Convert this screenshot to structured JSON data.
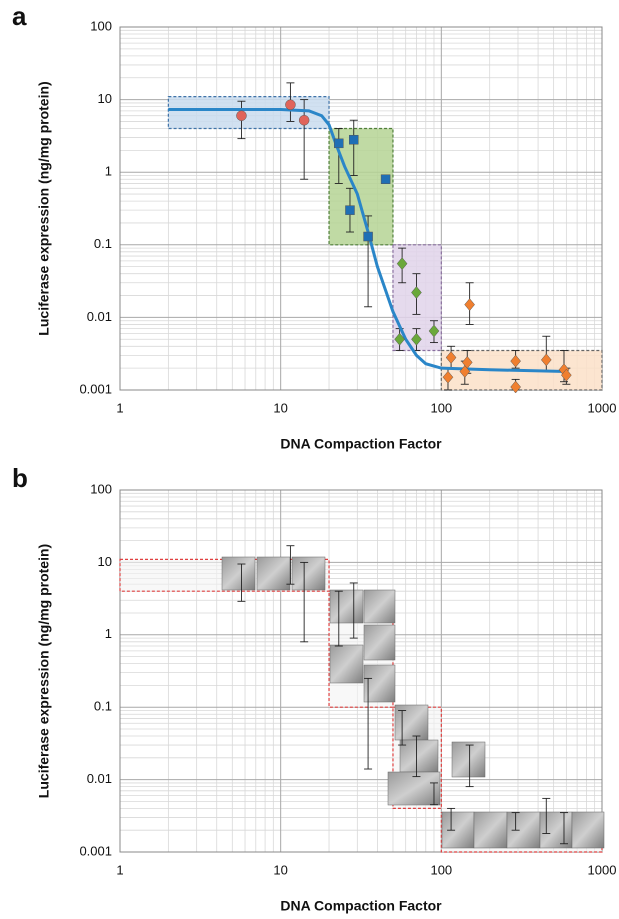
{
  "chart_data": [
    {
      "type": "scatter",
      "panel_label": "a",
      "xlabel": "DNA Compaction Factor",
      "ylabel": "Luciferase expression (ng/mg protein)",
      "xscale": "log",
      "yscale": "log",
      "xlim": [
        1,
        1000
      ],
      "ylim": [
        0.001,
        100
      ],
      "xticks": [
        1,
        10,
        100,
        1000
      ],
      "yticks": [
        0.001,
        0.01,
        0.1,
        1,
        10,
        100
      ],
      "grid": true,
      "regions": [
        {
          "x": [
            2,
            20
          ],
          "y": [
            4,
            11
          ],
          "color": "#c9dcee",
          "edge": "#3f73a8"
        },
        {
          "x": [
            20,
            50
          ],
          "y": [
            0.1,
            4
          ],
          "color": "#b5d394",
          "edge": "#4f7f3a"
        },
        {
          "x": [
            50,
            100
          ],
          "y": [
            0.0035,
            0.1
          ],
          "color": "#e0d3ea",
          "edge": "#8a70a0"
        },
        {
          "x": [
            100,
            1000
          ],
          "y": [
            0.001,
            0.0035
          ],
          "color": "#fce0c8",
          "edge": "#666666"
        }
      ],
      "curve": {
        "color": "#2a86c8",
        "x": [
          2,
          10,
          15,
          18,
          20,
          22,
          25,
          30,
          35,
          40,
          50,
          60,
          70,
          80,
          100,
          200,
          600
        ],
        "values": [
          7.3,
          7.3,
          7,
          6,
          4.5,
          2.5,
          1.2,
          0.5,
          0.15,
          0.05,
          0.012,
          0.005,
          0.003,
          0.0023,
          0.002,
          0.0019,
          0.0018
        ]
      },
      "series": [
        {
          "color": "#e0645a",
          "marker": "circle",
          "x": [
            5.7,
            11.5,
            14
          ],
          "values": [
            6,
            8.5,
            5.2
          ],
          "low": [
            2.9,
            5,
            0.8
          ],
          "high": [
            9.5,
            17,
            10
          ]
        },
        {
          "color": "#1f6fb5",
          "marker": "square",
          "x": [
            23,
            27,
            28.5,
            35,
            45
          ],
          "values": [
            2.5,
            0.3,
            2.8,
            0.13,
            0.8
          ],
          "low": [
            0.7,
            0.15,
            0.9,
            0.014,
            0.7
          ],
          "high": [
            4,
            0.6,
            5.2,
            0.25,
            0.9
          ]
        },
        {
          "color": "#6aa83a",
          "marker": "diamond",
          "x": [
            57,
            55,
            70,
            70,
            90
          ],
          "values": [
            0.055,
            0.005,
            0.022,
            0.005,
            0.0065
          ],
          "low": [
            0.03,
            0.0035,
            0.011,
            0.0035,
            0.0045
          ],
          "high": [
            0.09,
            0.007,
            0.04,
            0.007,
            0.009
          ]
        },
        {
          "color": "#f07f2f",
          "marker": "diamond",
          "x": [
            110,
            115,
            140,
            145,
            150,
            290,
            290,
            450,
            580,
            600
          ],
          "values": [
            0.0015,
            0.0028,
            0.0018,
            0.0024,
            0.015,
            0.0025,
            0.0011,
            0.0026,
            0.0019,
            0.0016
          ],
          "low": [
            0.001,
            0.002,
            0.0012,
            0.0017,
            0.008,
            0.002,
            0.001,
            0.0018,
            0.0013,
            0.0012
          ],
          "high": [
            0.002,
            0.004,
            0.0025,
            0.0035,
            0.03,
            0.0035,
            0.0014,
            0.0055,
            0.0035,
            0.002
          ]
        }
      ]
    },
    {
      "type": "errorbar",
      "panel_label": "b",
      "xlabel": "DNA Compaction Factor",
      "ylabel": "Luciferase expression (ng/mg protein)",
      "xscale": "log",
      "yscale": "log",
      "xlim": [
        1,
        1000
      ],
      "ylim": [
        0.001,
        100
      ],
      "xticks": [
        1,
        10,
        100,
        1000
      ],
      "yticks": [
        0.001,
        0.01,
        0.1,
        1,
        10,
        100
      ],
      "grid": true,
      "regions": [
        {
          "x": [
            1,
            20
          ],
          "y": [
            4,
            11
          ],
          "color": "#f4f4f4",
          "edge": "#e04040"
        },
        {
          "x": [
            20,
            50
          ],
          "y": [
            0.1,
            4
          ],
          "color": "#f4f4f4",
          "edge": "#e04040"
        },
        {
          "x": [
            50,
            100
          ],
          "y": [
            0.004,
            0.1
          ],
          "color": "#f4f4f4",
          "edge": "#e04040"
        },
        {
          "x": [
            100,
            1000
          ],
          "y": [
            0.001,
            0.0035
          ],
          "color": "#f4f4f4",
          "edge": "#e04040"
        }
      ],
      "series": [
        {
          "color": "#222222",
          "x": [
            5.7,
            11.5,
            14,
            23,
            28.5,
            35,
            57,
            70,
            90,
            115,
            150,
            290,
            450,
            580
          ],
          "low": [
            2.9,
            5,
            0.8,
            0.7,
            0.9,
            0.014,
            0.03,
            0.011,
            0.0045,
            0.002,
            0.008,
            0.002,
            0.0018,
            0.0013
          ],
          "high": [
            9.5,
            17,
            10,
            4,
            5.2,
            0.25,
            0.09,
            0.04,
            0.009,
            0.004,
            0.03,
            0.0035,
            0.0055,
            0.0035
          ]
        }
      ]
    }
  ]
}
